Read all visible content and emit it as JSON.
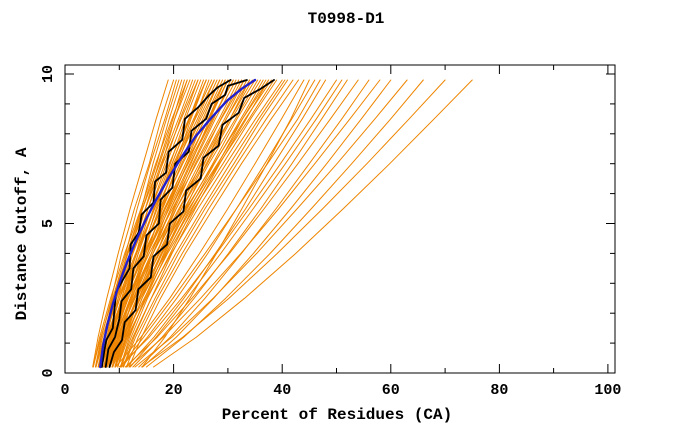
{
  "chart_data": {
    "type": "line",
    "title": "T0998-D1",
    "xlabel": "Percent of Residues (CA)",
    "ylabel": "Distance Cutoff, A",
    "xlim": [
      0,
      101.3
    ],
    "ylim": [
      0,
      10.3
    ],
    "x_major_ticks": [
      0,
      20,
      40,
      60,
      80,
      100
    ],
    "x_minor_ticks": [
      10,
      30,
      50,
      70,
      90
    ],
    "y_major_ticks": [
      0,
      5,
      10
    ],
    "y_minor_ticks": [
      1,
      2,
      3,
      4,
      6,
      7,
      8,
      9
    ],
    "grid": false,
    "legend": "none",
    "axis_color": "#000000",
    "background_color": "#ffffff",
    "series": [
      {
        "name": "model-curves",
        "color": "#ee8500",
        "width": 1,
        "y_anchors": [
          0.2,
          1.2,
          2.5,
          4.0,
          5.5,
          7.0,
          8.5,
          9.8
        ],
        "curves_x": [
          [
            5.1,
            6.1,
            7.7,
            9.8,
            12.0,
            14.4,
            16.8,
            19.0
          ],
          [
            5.6,
            6.7,
            8.6,
            10.4,
            12.8,
            15.5,
            17.7,
            20.0
          ],
          [
            6.1,
            7.2,
            8.8,
            11.2,
            13.3,
            15.7,
            18.4,
            20.5
          ],
          [
            6.6,
            7.7,
            9.3,
            11.4,
            14.1,
            16.2,
            18.7,
            21.0
          ],
          [
            7.1,
            8.4,
            9.8,
            11.9,
            14.3,
            16.9,
            19.2,
            21.5
          ],
          [
            7.6,
            8.7,
            10.5,
            12.4,
            14.8,
            17.2,
            19.9,
            22.0
          ],
          [
            8.1,
            9.2,
            10.8,
            13.1,
            15.3,
            17.9,
            20.2,
            22.5
          ],
          [
            5.2,
            6.4,
            8.4,
            11.0,
            14.0,
            16.7,
            19.7,
            22.5
          ],
          [
            5.7,
            6.9,
            9.1,
            11.5,
            14.3,
            17.4,
            20.2,
            23.0
          ],
          [
            6.2,
            7.4,
            9.4,
            12.2,
            14.8,
            17.7,
            20.9,
            23.5
          ],
          [
            6.7,
            7.9,
            10.1,
            12.5,
            15.3,
            18.4,
            21.2,
            24.0
          ],
          [
            7.2,
            8.4,
            10.4,
            13.2,
            15.8,
            18.7,
            21.9,
            24.5
          ],
          [
            7.7,
            8.9,
            11.1,
            13.5,
            16.3,
            19.4,
            22.2,
            25.0
          ],
          [
            8.2,
            9.4,
            11.4,
            14.2,
            16.8,
            19.7,
            22.9,
            25.5
          ],
          [
            8.7,
            9.9,
            12.1,
            14.5,
            17.3,
            20.4,
            23.2,
            26.0
          ],
          [
            9.2,
            10.4,
            12.4,
            15.2,
            17.8,
            20.7,
            23.9,
            26.5
          ],
          [
            5.7,
            7.2,
            9.5,
            12.5,
            15.8,
            19.2,
            22.8,
            26.0
          ],
          [
            6.2,
            7.7,
            10.1,
            13.2,
            16.5,
            20.0,
            23.7,
            27.0
          ],
          [
            6.7,
            8.2,
            10.6,
            13.9,
            17.0,
            20.5,
            24.4,
            27.5
          ],
          [
            7.2,
            8.7,
            11.3,
            14.2,
            17.5,
            21.2,
            24.7,
            28.0
          ],
          [
            7.7,
            9.2,
            11.6,
            14.9,
            18.0,
            21.5,
            25.4,
            28.5
          ],
          [
            8.2,
            9.7,
            12.3,
            15.2,
            18.5,
            22.2,
            25.7,
            29.0
          ],
          [
            8.7,
            10.2,
            12.6,
            15.9,
            19.0,
            22.5,
            26.4,
            29.5
          ],
          [
            9.2,
            10.7,
            13.3,
            16.2,
            19.5,
            23.2,
            26.7,
            30.0
          ],
          [
            9.7,
            11.2,
            13.6,
            16.9,
            20.0,
            23.5,
            27.4,
            30.5
          ],
          [
            6.2,
            7.9,
            10.6,
            14.0,
            17.8,
            21.7,
            25.8,
            29.5
          ],
          [
            6.7,
            8.4,
            11.1,
            14.7,
            18.3,
            22.2,
            26.5,
            30.0
          ],
          [
            7.2,
            8.9,
            11.7,
            15.2,
            19.2,
            23.0,
            27.2,
            31.0
          ],
          [
            7.7,
            9.4,
            12.2,
            15.9,
            19.5,
            23.7,
            27.7,
            31.5
          ],
          [
            8.2,
            9.9,
            12.7,
            16.2,
            20.2,
            24.0,
            28.4,
            32.0
          ],
          [
            8.7,
            10.4,
            13.2,
            16.9,
            20.5,
            24.7,
            28.7,
            32.5
          ],
          [
            9.2,
            10.9,
            13.7,
            17.2,
            21.2,
            25.0,
            29.4,
            33.0
          ],
          [
            9.7,
            11.4,
            14.2,
            17.9,
            21.5,
            25.7,
            29.7,
            33.5
          ],
          [
            10.2,
            11.9,
            14.7,
            18.2,
            22.2,
            26.0,
            30.4,
            34.0
          ],
          [
            6.7,
            8.6,
            11.6,
            15.5,
            19.8,
            24.2,
            28.8,
            33.0
          ],
          [
            7.2,
            9.2,
            12.2,
            16.2,
            20.5,
            25.2,
            29.7,
            34.0
          ],
          [
            7.7,
            9.7,
            12.9,
            16.7,
            21.0,
            25.5,
            30.4,
            34.5
          ],
          [
            8.2,
            10.2,
            13.2,
            17.4,
            21.5,
            26.2,
            30.7,
            35.0
          ],
          [
            8.7,
            10.7,
            13.9,
            17.7,
            22.0,
            26.5,
            31.4,
            35.5
          ],
          [
            9.2,
            11.2,
            14.2,
            18.4,
            22.5,
            27.2,
            31.7,
            36.0
          ],
          [
            9.7,
            11.7,
            14.9,
            18.7,
            23.0,
            27.5,
            32.4,
            36.5
          ],
          [
            10.2,
            12.2,
            15.2,
            19.4,
            23.5,
            28.2,
            32.7,
            37.0
          ],
          [
            10.7,
            12.7,
            15.9,
            19.7,
            24.0,
            28.5,
            33.4,
            37.5
          ],
          [
            7.3,
            9.5,
            12.9,
            17.4,
            22.3,
            27.4,
            32.7,
            37.5
          ],
          [
            7.8,
            10.0,
            13.6,
            17.9,
            22.8,
            28.1,
            33.2,
            38.0
          ],
          [
            8.3,
            10.5,
            13.9,
            18.6,
            23.3,
            28.4,
            33.9,
            38.5
          ],
          [
            8.8,
            11.0,
            14.6,
            18.9,
            23.8,
            29.1,
            34.2,
            39.0
          ],
          [
            9.3,
            11.5,
            15.0,
            19.6,
            24.5,
            29.7,
            35.1,
            40.0
          ],
          [
            10.3,
            12.5,
            15.9,
            20.4,
            25.3,
            30.4,
            35.7,
            40.5
          ],
          [
            10.8,
            13.0,
            16.6,
            20.9,
            25.8,
            31.1,
            36.2,
            41.0
          ],
          [
            11.3,
            13.5,
            17.0,
            21.6,
            26.5,
            31.7,
            37.1,
            42.0
          ],
          [
            11.8,
            14.1,
            17.6,
            22.2,
            27.3,
            32.5,
            38.0,
            43.0
          ],
          [
            5.2,
            6.6,
            8.8,
            11.6,
            14.8,
            18.0,
            21.4,
            24.5
          ],
          [
            5.7,
            7.3,
            9.8,
            13.0,
            16.5,
            20.2,
            24.0,
            27.5
          ],
          [
            6.2,
            8.0,
            10.9,
            14.5,
            18.5,
            22.7,
            27.1,
            31.0
          ],
          [
            6.7,
            8.3,
            10.8,
            14.0,
            17.5,
            21.2,
            25.0,
            28.5
          ],
          [
            7.2,
            8.5,
            10.7,
            13.5,
            16.5,
            19.7,
            23.0,
            26.0
          ],
          [
            7.7,
            9.3,
            12.0,
            15.2,
            18.8,
            22.5,
            26.4,
            30.0
          ],
          [
            9.3,
            14.0,
            19.3,
            24.8,
            30.0,
            35.0,
            39.9,
            44.0
          ],
          [
            10.4,
            15.2,
            20.6,
            26.3,
            31.6,
            36.8,
            41.8,
            46.0
          ],
          [
            11.4,
            16.4,
            21.9,
            27.7,
            33.3,
            38.5,
            43.7,
            48.0
          ],
          [
            10.0,
            15.5,
            21.5,
            27.9,
            33.9,
            39.7,
            45.3,
            50.0
          ],
          [
            12.5,
            17.9,
            23.8,
            30.1,
            36.1,
            41.8,
            47.3,
            52.0
          ],
          [
            11.1,
            17.0,
            23.4,
            30.3,
            36.7,
            42.9,
            48.9,
            54.0
          ],
          [
            13.6,
            19.4,
            25.8,
            32.5,
            38.9,
            45.0,
            51.0,
            56.0
          ],
          [
            11.8,
            18.1,
            25.0,
            32.4,
            39.4,
            46.0,
            52.5,
            58.0
          ],
          [
            14.3,
            20.5,
            27.4,
            34.7,
            41.6,
            48.2,
            54.6,
            60.0
          ],
          [
            12.9,
            19.7,
            27.3,
            35.3,
            42.8,
            50.1,
            57.1,
            63.0
          ],
          [
            15.0,
            21.9,
            29.6,
            37.8,
            45.4,
            52.8,
            60.0,
            66.0
          ],
          [
            14.1,
            21.7,
            30.2,
            39.1,
            47.5,
            55.6,
            63.4,
            70.0
          ],
          [
            16.3,
            24.2,
            33.1,
            42.5,
            51.3,
            59.8,
            68.0,
            75.0
          ],
          [
            10.2,
            14.5,
            19.9,
            25.8,
            31.6,
            37.3,
            42.9,
            47.0
          ],
          [
            12.0,
            16.8,
            22.5,
            28.7,
            34.7,
            40.6,
            46.3,
            51.0
          ],
          [
            14.2,
            18.4,
            23.0,
            27.9,
            32.6,
            37.2,
            41.6,
            45.0
          ]
        ]
      },
      {
        "name": "reference-curves",
        "color": "#000000",
        "width": 1.8,
        "curves_xy": [
          [
            [
              6.8,
              0.2
            ],
            [
              7.2,
              0.7
            ],
            [
              7.6,
              1.1
            ],
            [
              8.8,
              1.5
            ],
            [
              9.1,
              2.1
            ],
            [
              9.4,
              2.7
            ],
            [
              10.6,
              3.1
            ],
            [
              11.9,
              3.5
            ],
            [
              12.1,
              4.3
            ],
            [
              13.6,
              4.7
            ],
            [
              14.1,
              5.3
            ],
            [
              16.3,
              5.7
            ],
            [
              16.6,
              6.4
            ],
            [
              18.6,
              6.7
            ],
            [
              19.1,
              7.4
            ],
            [
              21.6,
              7.8
            ],
            [
              22.1,
              8.5
            ],
            [
              24.6,
              8.9
            ],
            [
              26.6,
              9.3
            ],
            [
              28.1,
              9.55
            ],
            [
              30.5,
              9.8
            ]
          ],
          [
            [
              7.5,
              0.2
            ],
            [
              8.0,
              0.8
            ],
            [
              9.2,
              1.2
            ],
            [
              10.0,
              1.8
            ],
            [
              10.4,
              2.4
            ],
            [
              12.2,
              2.8
            ],
            [
              12.6,
              3.5
            ],
            [
              14.5,
              3.9
            ],
            [
              15.0,
              4.6
            ],
            [
              17.3,
              5.0
            ],
            [
              17.6,
              5.8
            ],
            [
              19.8,
              6.2
            ],
            [
              20.3,
              7.0
            ],
            [
              22.8,
              7.4
            ],
            [
              23.3,
              8.1
            ],
            [
              26.0,
              8.5
            ],
            [
              27.0,
              9.0
            ],
            [
              29.5,
              9.3
            ],
            [
              30.0,
              9.6
            ],
            [
              33.5,
              9.8
            ]
          ],
          [
            [
              8.2,
              0.2
            ],
            [
              9.0,
              0.7
            ],
            [
              10.5,
              1.1
            ],
            [
              11.0,
              1.7
            ],
            [
              13.0,
              2.1
            ],
            [
              13.5,
              2.8
            ],
            [
              15.8,
              3.2
            ],
            [
              16.3,
              3.9
            ],
            [
              18.8,
              4.3
            ],
            [
              19.3,
              5.0
            ],
            [
              21.8,
              5.4
            ],
            [
              22.3,
              6.1
            ],
            [
              25.0,
              6.5
            ],
            [
              25.5,
              7.2
            ],
            [
              28.3,
              7.6
            ],
            [
              29.0,
              8.3
            ],
            [
              32.0,
              8.7
            ],
            [
              33.0,
              9.2
            ],
            [
              36.0,
              9.5
            ],
            [
              38.5,
              9.8
            ]
          ]
        ]
      },
      {
        "name": "highlighted-curve",
        "color": "#2020cc",
        "width": 2.4,
        "curves_xy": [
          [
            [
              6.5,
              0.2
            ],
            [
              7.0,
              0.9
            ],
            [
              7.8,
              1.6
            ],
            [
              8.8,
              2.3
            ],
            [
              10.0,
              3.0
            ],
            [
              11.4,
              3.7
            ],
            [
              13.0,
              4.4
            ],
            [
              14.8,
              5.1
            ],
            [
              16.8,
              5.8
            ],
            [
              19.0,
              6.5
            ],
            [
              21.4,
              7.2
            ],
            [
              24.0,
              7.9
            ],
            [
              26.8,
              8.5
            ],
            [
              29.8,
              9.1
            ],
            [
              32.5,
              9.5
            ],
            [
              35.0,
              9.8
            ]
          ]
        ]
      }
    ]
  }
}
